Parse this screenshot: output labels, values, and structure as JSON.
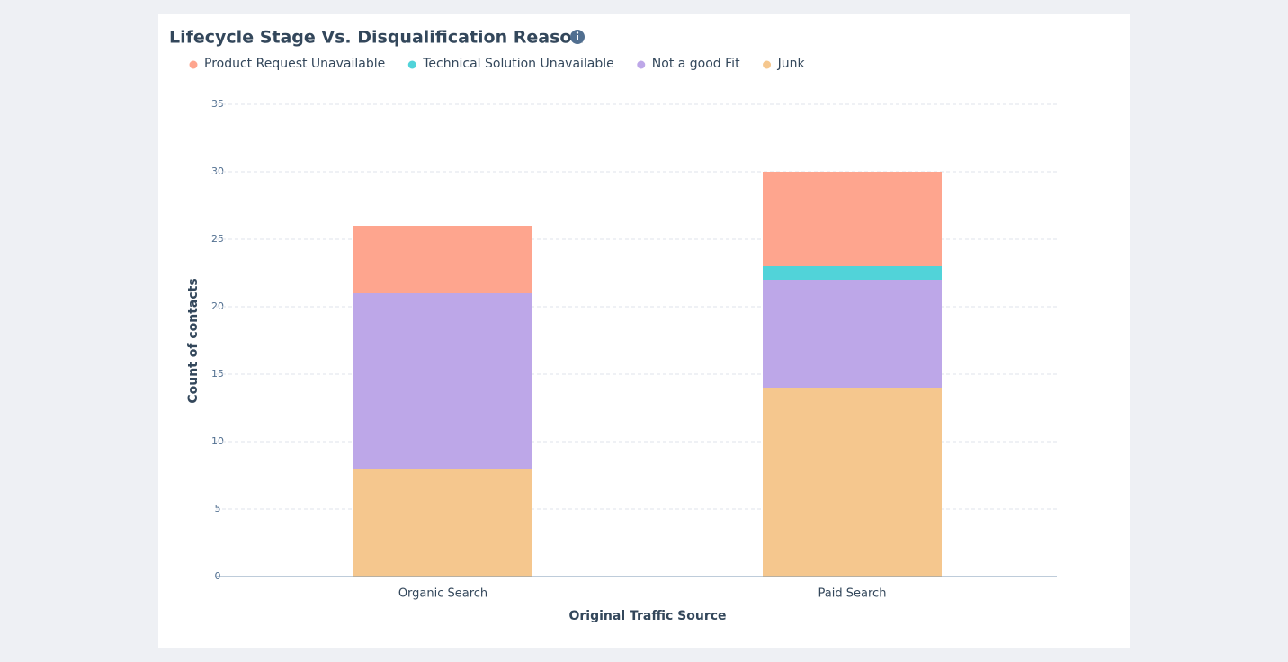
{
  "chart_data": {
    "type": "stacked-bar",
    "title": "Lifecycle Stage Vs. Disqualification Reason",
    "x_label": "Original Traffic Source",
    "y_label": "Count of contacts",
    "categories": [
      "Organic Search",
      "Paid Search"
    ],
    "series": [
      {
        "name": "Junk",
        "color": "#f5c78e",
        "values": [
          8,
          14
        ]
      },
      {
        "name": "Not a good Fit",
        "color": "#bda7e8",
        "values": [
          13,
          8
        ]
      },
      {
        "name": "Technical Solution Unavailable",
        "color": "#51d3d9",
        "values": [
          0,
          1
        ]
      },
      {
        "name": "Product Request Unavailable",
        "color": "#fea58e",
        "values": [
          5,
          7
        ]
      }
    ],
    "ylim": [
      0,
      35
    ],
    "yticks": [
      0,
      5,
      10,
      15,
      20,
      25,
      30,
      35
    ],
    "grid": true
  }
}
